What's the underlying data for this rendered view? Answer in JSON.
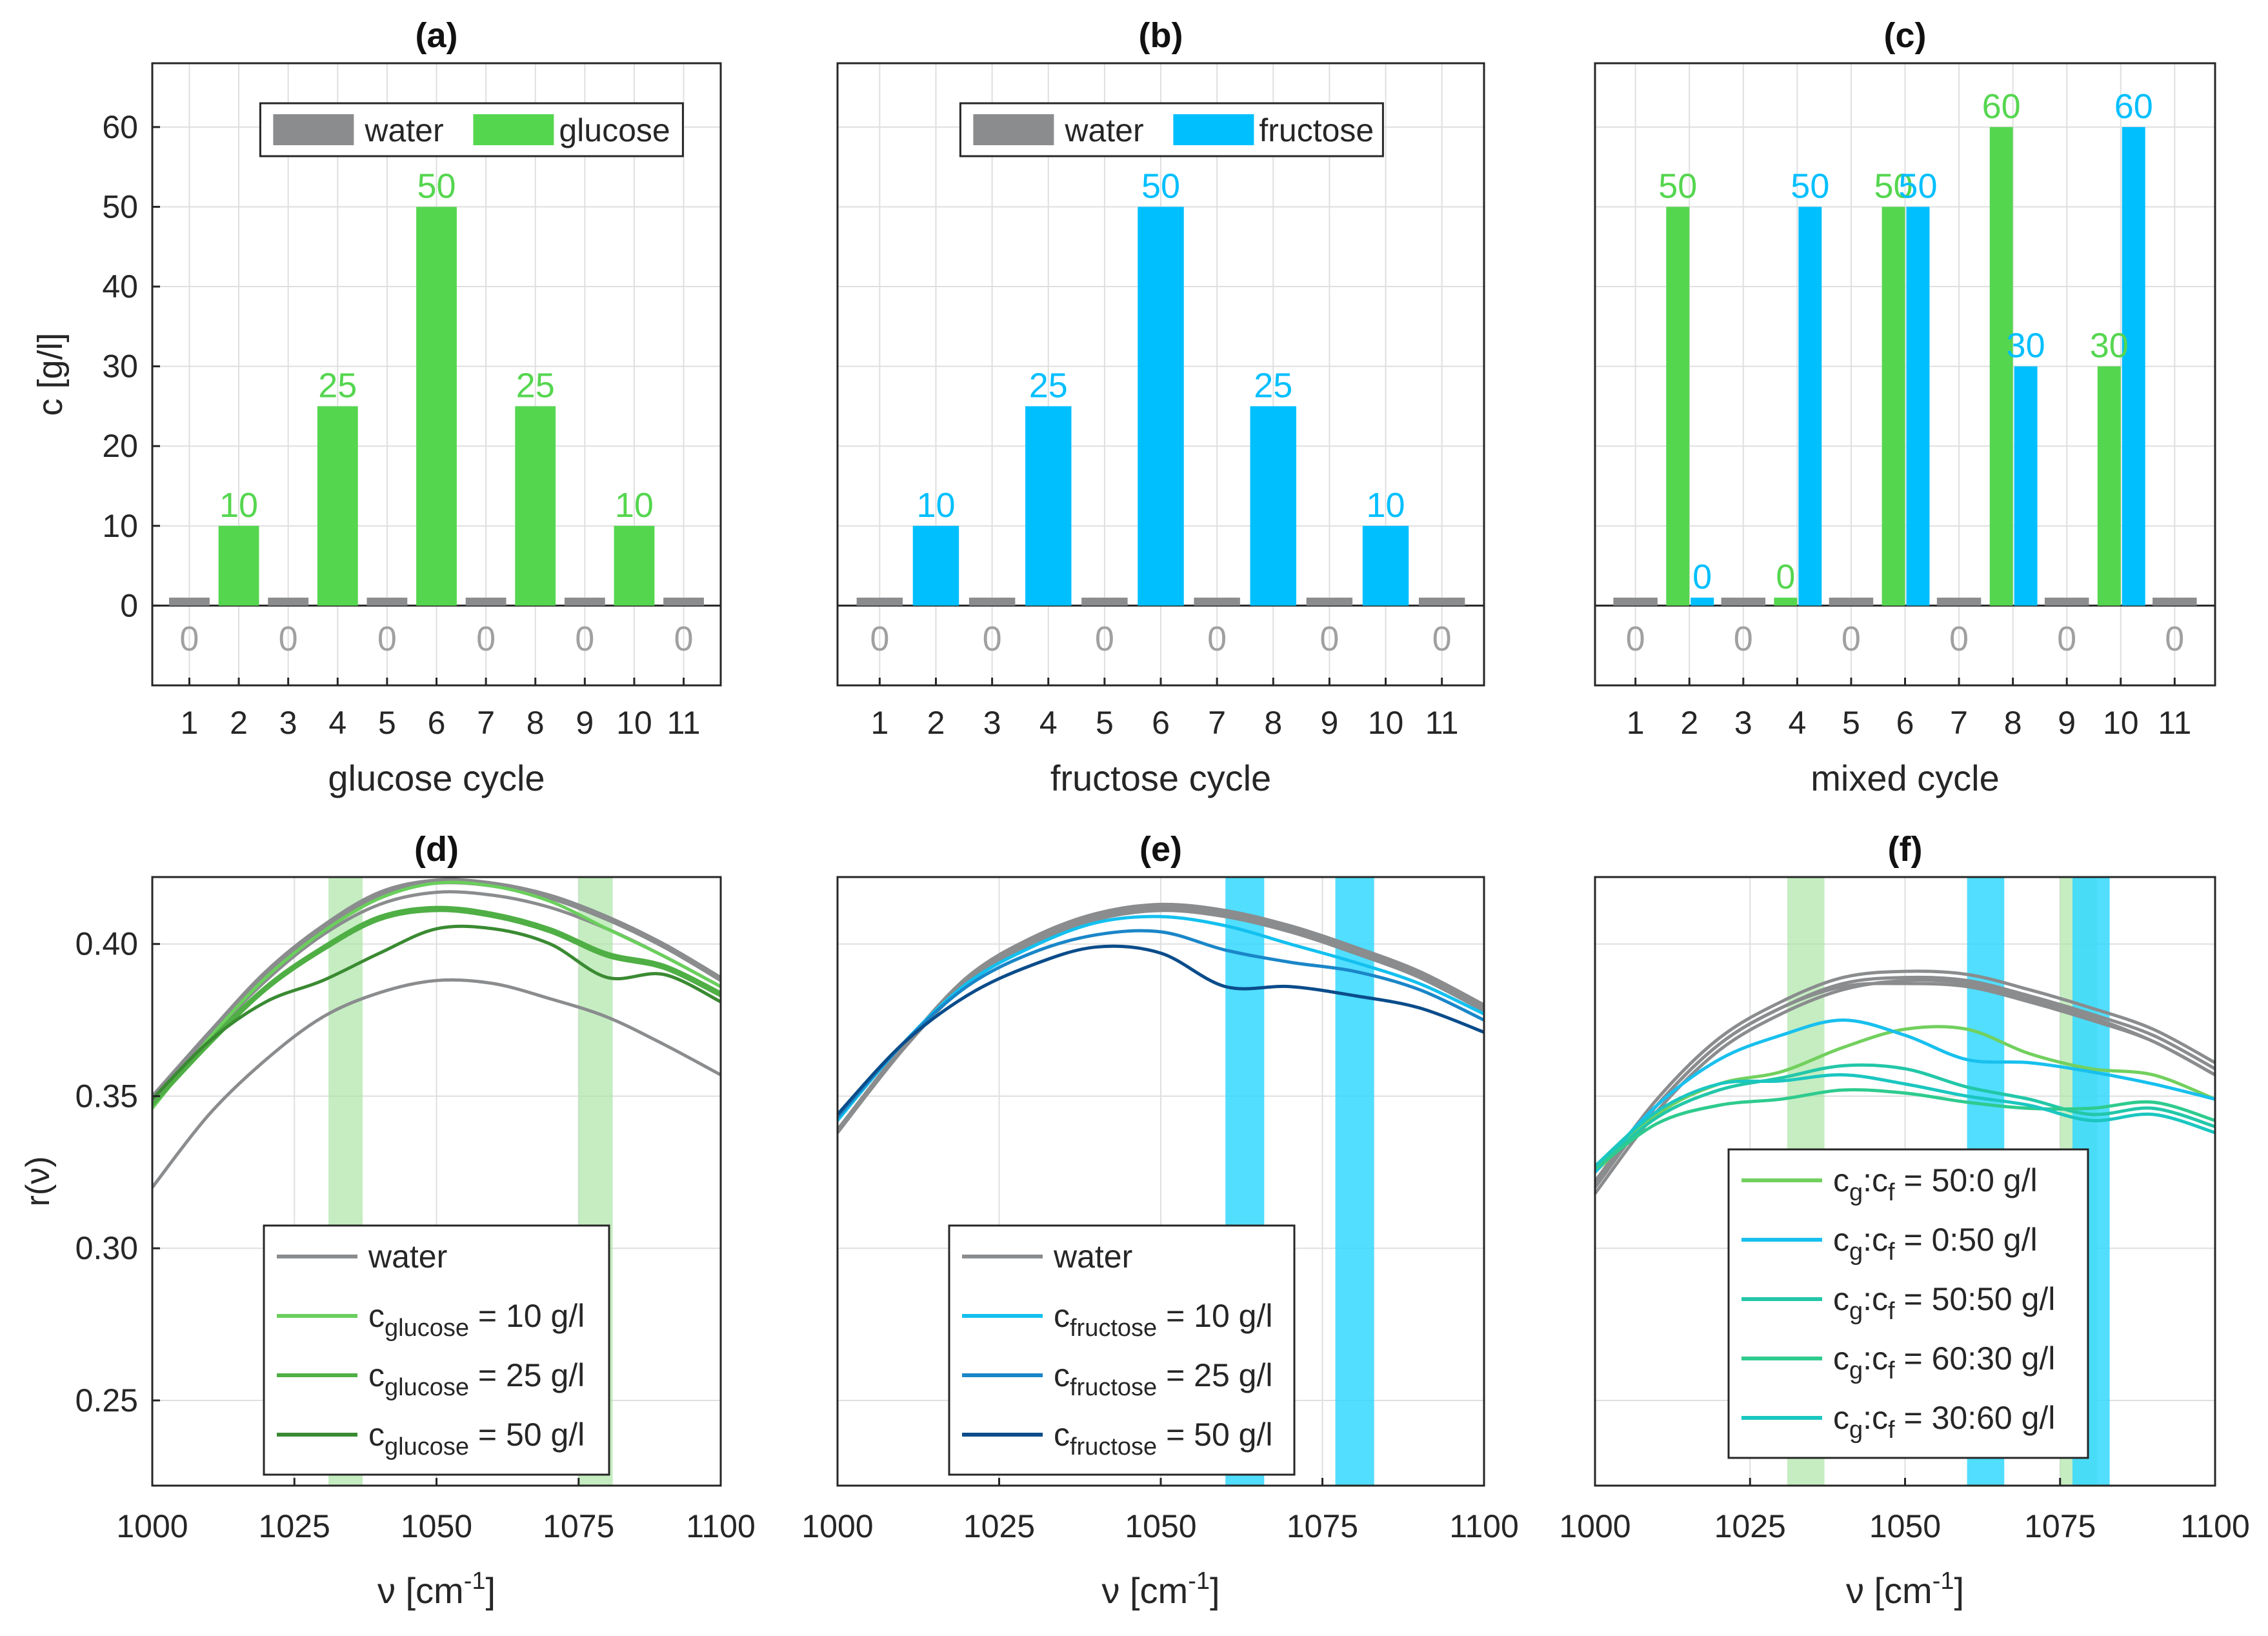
{
  "colors": {
    "water": "#8a8c8e",
    "glucose": "#55d64f",
    "fructose": "#00bfff",
    "green_band": "#a6e3a0",
    "blue_band": "#33d8ff",
    "g10": "#6acf5c",
    "g25": "#4faf45",
    "g50": "#3a8a32",
    "f10": "#13c0ef",
    "f25": "#1a86c8",
    "f50": "#0a4c8a",
    "m1": "#72d05e",
    "m2": "#18c0ee",
    "m3": "#23c7a8",
    "m4": "#2ecb8e",
    "m5": "#1bc6c0"
  },
  "chart_data": [
    {
      "type": "bar",
      "id": "a",
      "title": "(a)",
      "xlabel": "glucose cycle",
      "ylabel": "c [g/l]",
      "ylim": [
        -10,
        68
      ],
      "yticks": [
        0,
        10,
        20,
        30,
        40,
        50,
        60
      ],
      "categories": [
        "1",
        "2",
        "3",
        "4",
        "5",
        "6",
        "7",
        "8",
        "9",
        "10",
        "11"
      ],
      "legend": [
        "water",
        "glucose"
      ],
      "series": [
        {
          "name": "water",
          "values": [
            0,
            null,
            0,
            null,
            0,
            null,
            0,
            null,
            0,
            null,
            0
          ]
        },
        {
          "name": "glucose",
          "values": [
            null,
            10,
            null,
            25,
            null,
            50,
            null,
            25,
            null,
            10,
            null
          ]
        }
      ],
      "bar_labels": [
        "0",
        "10",
        "0",
        "25",
        "0",
        "50",
        "0",
        "25",
        "0",
        "10",
        "0"
      ]
    },
    {
      "type": "bar",
      "id": "b",
      "title": "(b)",
      "xlabel": "fructose cycle",
      "ylabel": "",
      "ylim": [
        -10,
        68
      ],
      "categories": [
        "1",
        "2",
        "3",
        "4",
        "5",
        "6",
        "7",
        "8",
        "9",
        "10",
        "11"
      ],
      "legend": [
        "water",
        "fructose"
      ],
      "series": [
        {
          "name": "water",
          "values": [
            0,
            null,
            0,
            null,
            0,
            null,
            0,
            null,
            0,
            null,
            0
          ]
        },
        {
          "name": "fructose",
          "values": [
            null,
            10,
            null,
            25,
            null,
            50,
            null,
            25,
            null,
            10,
            null
          ]
        }
      ],
      "bar_labels": [
        "0",
        "10",
        "0",
        "25",
        "0",
        "50",
        "0",
        "25",
        "0",
        "10",
        "0"
      ]
    },
    {
      "type": "bar",
      "id": "c",
      "title": "(c)",
      "xlabel": "mixed cycle",
      "ylabel": "",
      "ylim": [
        -10,
        68
      ],
      "categories": [
        "1",
        "2",
        "3",
        "4",
        "5",
        "6",
        "7",
        "8",
        "9",
        "10",
        "11"
      ],
      "series": [
        {
          "name": "water",
          "values": [
            0,
            null,
            0,
            null,
            0,
            null,
            0,
            null,
            0,
            null,
            0
          ]
        },
        {
          "name": "glucose",
          "values": [
            null,
            50,
            null,
            0,
            null,
            50,
            null,
            60,
            null,
            30,
            null
          ]
        },
        {
          "name": "fructose",
          "values": [
            null,
            0,
            null,
            50,
            null,
            50,
            null,
            30,
            null,
            60,
            null
          ]
        }
      ],
      "water_labels": [
        "0",
        "0",
        "0",
        "0",
        "0",
        "0"
      ],
      "glucose_labels": [
        "50",
        "0",
        "50",
        "60",
        "30"
      ],
      "fructose_labels": [
        "0",
        "50",
        "50",
        "30",
        "60"
      ]
    },
    {
      "type": "line",
      "id": "d",
      "title": "(d)",
      "xlabel_main": "ν [cm",
      "xlabel_sup": "-1",
      "xlabel_end": "]",
      "ylabel": "r(ν)",
      "xlim": [
        1000,
        1100
      ],
      "ylim": [
        0.222,
        0.422
      ],
      "xticks": [
        1000,
        1025,
        1050,
        1075,
        1100
      ],
      "yticks": [
        0.25,
        0.3,
        0.35,
        0.4
      ],
      "ytick_labels": [
        "0.25",
        "0.30",
        "0.35",
        "0.40"
      ],
      "bands": [
        {
          "from": 1031,
          "to": 1037,
          "color": "green"
        },
        {
          "from": 1075,
          "to": 1081,
          "color": "green"
        }
      ],
      "x": [
        1000,
        1010,
        1020,
        1030,
        1040,
        1050,
        1060,
        1070,
        1080,
        1090,
        1100
      ],
      "series": [
        {
          "name": "water",
          "color": "water",
          "width": 5,
          "values": [
            0.35,
            0.371,
            0.391,
            0.406,
            0.417,
            0.421,
            0.42,
            0.416,
            0.409,
            0.4,
            0.389
          ]
        },
        {
          "name": "water",
          "color": "water",
          "width": 5,
          "values": [
            0.349,
            0.37,
            0.39,
            0.405,
            0.416,
            0.42,
            0.419,
            0.415,
            0.408,
            0.399,
            0.388
          ]
        },
        {
          "name": "water",
          "color": "water",
          "width": 5,
          "values": [
            0.348,
            0.369,
            0.388,
            0.403,
            0.413,
            0.417,
            0.416,
            0.412,
            0.405,
            0.396,
            0.386
          ]
        },
        {
          "name": "water",
          "color": "water",
          "width": 5,
          "values": [
            0.32,
            0.344,
            0.362,
            0.376,
            0.384,
            0.388,
            0.387,
            0.382,
            0.376,
            0.367,
            0.357
          ]
        },
        {
          "name": "c_glucose = 10 g/l",
          "color": "g10",
          "width": 5,
          "values": [
            0.346,
            0.369,
            0.389,
            0.404,
            0.415,
            0.42,
            0.419,
            0.414,
            0.405,
            0.396,
            0.386
          ]
        },
        {
          "name": "c_glucose = 25 g/l",
          "color": "g25",
          "width": 5,
          "values": [
            0.347,
            0.367,
            0.385,
            0.398,
            0.408,
            0.411,
            0.409,
            0.404,
            0.396,
            0.392,
            0.383
          ]
        },
        {
          "name": "c_glucose = 25 g/l",
          "color": "g25",
          "width": 5,
          "values": [
            0.347,
            0.368,
            0.386,
            0.399,
            0.409,
            0.412,
            0.41,
            0.405,
            0.397,
            0.393,
            0.384
          ]
        },
        {
          "name": "c_glucose = 50 g/l",
          "color": "g50",
          "width": 5,
          "values": [
            0.349,
            0.368,
            0.381,
            0.388,
            0.397,
            0.405,
            0.405,
            0.4,
            0.389,
            0.39,
            0.381
          ]
        }
      ],
      "legend": [
        {
          "color": "water",
          "base": "water",
          "sub": "",
          "rest": ""
        },
        {
          "color": "g10",
          "base": "c",
          "sub": "glucose",
          "rest": " = 10 g/l"
        },
        {
          "color": "g25",
          "base": "c",
          "sub": "glucose",
          "rest": " = 25 g/l"
        },
        {
          "color": "g50",
          "base": "c",
          "sub": "glucose",
          "rest": " = 50 g/l"
        }
      ]
    },
    {
      "type": "line",
      "id": "e",
      "title": "(e)",
      "xlabel_main": "ν [cm",
      "xlabel_sup": "-1",
      "xlabel_end": "]",
      "xlim": [
        1000,
        1100
      ],
      "ylim": [
        0.222,
        0.422
      ],
      "xticks": [
        1000,
        1025,
        1050,
        1075,
        1100
      ],
      "bands": [
        {
          "from": 1060,
          "to": 1066,
          "color": "blue"
        },
        {
          "from": 1077,
          "to": 1083,
          "color": "blue"
        }
      ],
      "x": [
        1000,
        1010,
        1020,
        1030,
        1040,
        1050,
        1060,
        1070,
        1080,
        1090,
        1100
      ],
      "series": [
        {
          "name": "water",
          "color": "water",
          "width": 5,
          "values": [
            0.338,
            0.365,
            0.388,
            0.401,
            0.409,
            0.412,
            0.41,
            0.405,
            0.398,
            0.39,
            0.379
          ]
        },
        {
          "name": "water",
          "color": "water",
          "width": 5,
          "values": [
            0.339,
            0.366,
            0.389,
            0.402,
            0.41,
            0.413,
            0.411,
            0.406,
            0.399,
            0.391,
            0.38
          ]
        },
        {
          "name": "water",
          "color": "water",
          "width": 5,
          "values": [
            0.338,
            0.365,
            0.387,
            0.4,
            0.408,
            0.411,
            0.409,
            0.404,
            0.397,
            0.389,
            0.378
          ]
        },
        {
          "name": "c_fructose = 10 g/l",
          "color": "f10",
          "width": 5,
          "values": [
            0.342,
            0.367,
            0.387,
            0.399,
            0.407,
            0.409,
            0.406,
            0.4,
            0.394,
            0.387,
            0.377
          ]
        },
        {
          "name": "c_fructose = 25 g/l",
          "color": "f25",
          "width": 5,
          "values": [
            0.343,
            0.367,
            0.386,
            0.397,
            0.403,
            0.404,
            0.398,
            0.394,
            0.391,
            0.385,
            0.375
          ]
        },
        {
          "name": "c_fructose = 50 g/l",
          "color": "f50",
          "width": 5,
          "values": [
            0.344,
            0.367,
            0.383,
            0.393,
            0.399,
            0.397,
            0.386,
            0.386,
            0.383,
            0.379,
            0.371
          ]
        }
      ],
      "legend": [
        {
          "color": "water",
          "base": "water",
          "sub": "",
          "rest": ""
        },
        {
          "color": "f10",
          "base": "c",
          "sub": "fructose",
          "rest": " = 10 g/l"
        },
        {
          "color": "f25",
          "base": "c",
          "sub": "fructose",
          "rest": " = 25 g/l"
        },
        {
          "color": "f50",
          "base": "c",
          "sub": "fructose",
          "rest": " = 50 g/l"
        }
      ]
    },
    {
      "type": "line",
      "id": "f",
      "title": "(f)",
      "xlabel_main": "ν [cm",
      "xlabel_sup": "-1",
      "xlabel_end": "]",
      "xlim": [
        1000,
        1100
      ],
      "ylim": [
        0.222,
        0.422
      ],
      "xticks": [
        1000,
        1025,
        1050,
        1075,
        1100
      ],
      "bands": [
        {
          "from": 1031,
          "to": 1037,
          "color": "green"
        },
        {
          "from": 1075,
          "to": 1081,
          "color": "green"
        },
        {
          "from": 1060,
          "to": 1066,
          "color": "blue"
        },
        {
          "from": 1077,
          "to": 1083,
          "color": "blue"
        }
      ],
      "x": [
        1000,
        1010,
        1020,
        1030,
        1040,
        1050,
        1060,
        1070,
        1080,
        1090,
        1100
      ],
      "series": [
        {
          "name": "water",
          "color": "water",
          "width": 5,
          "values": [
            0.318,
            0.345,
            0.365,
            0.377,
            0.385,
            0.388,
            0.387,
            0.382,
            0.376,
            0.368,
            0.357
          ]
        },
        {
          "name": "water",
          "color": "water",
          "width": 5,
          "values": [
            0.32,
            0.347,
            0.367,
            0.379,
            0.387,
            0.389,
            0.388,
            0.383,
            0.377,
            0.37,
            0.359
          ]
        },
        {
          "name": "water",
          "color": "water",
          "width": 5,
          "values": [
            0.322,
            0.349,
            0.369,
            0.381,
            0.389,
            0.391,
            0.39,
            0.385,
            0.379,
            0.372,
            0.361
          ]
        },
        {
          "name": "water",
          "color": "water",
          "width": 5,
          "values": [
            0.321,
            0.347,
            0.367,
            0.379,
            0.386,
            0.387,
            0.386,
            0.381,
            0.375,
            0.368,
            0.357
          ]
        },
        {
          "name": "c_g:c_f = 50:0 g/l",
          "color": "m1",
          "width": 5,
          "values": [
            0.325,
            0.344,
            0.354,
            0.358,
            0.366,
            0.372,
            0.372,
            0.364,
            0.359,
            0.357,
            0.349
          ]
        },
        {
          "name": "c_g:c_f = 0:50 g/l",
          "color": "m2",
          "width": 5,
          "values": [
            0.325,
            0.347,
            0.362,
            0.37,
            0.375,
            0.37,
            0.362,
            0.361,
            0.358,
            0.354,
            0.349
          ]
        },
        {
          "name": "c_g:c_f = 50:50 g/l",
          "color": "m3",
          "width": 5,
          "values": [
            0.326,
            0.343,
            0.352,
            0.356,
            0.36,
            0.359,
            0.353,
            0.349,
            0.344,
            0.346,
            0.34
          ]
        },
        {
          "name": "c_g:c_f = 60:30 g/l",
          "color": "m4",
          "width": 5,
          "values": [
            0.326,
            0.341,
            0.347,
            0.349,
            0.352,
            0.351,
            0.348,
            0.346,
            0.346,
            0.348,
            0.342
          ]
        },
        {
          "name": "c_g:c_f = 30:60 g/l",
          "color": "m5",
          "width": 5,
          "values": [
            0.327,
            0.345,
            0.354,
            0.355,
            0.357,
            0.354,
            0.35,
            0.347,
            0.342,
            0.344,
            0.338
          ]
        }
      ],
      "legend": [
        {
          "color": "m1",
          "base": "c",
          "sub": "g",
          "mid": ":c",
          "sub2": "f",
          "rest": " = 50:0 g/l"
        },
        {
          "color": "m2",
          "base": "c",
          "sub": "g",
          "mid": ":c",
          "sub2": "f",
          "rest": " = 0:50 g/l"
        },
        {
          "color": "m3",
          "base": "c",
          "sub": "g",
          "mid": ":c",
          "sub2": "f",
          "rest": " = 50:50 g/l"
        },
        {
          "color": "m4",
          "base": "c",
          "sub": "g",
          "mid": ":c",
          "sub2": "f",
          "rest": " = 60:30 g/l"
        },
        {
          "color": "m5",
          "base": "c",
          "sub": "g",
          "mid": ":c",
          "sub2": "f",
          "rest": " = 30:60 g/l"
        }
      ]
    }
  ]
}
